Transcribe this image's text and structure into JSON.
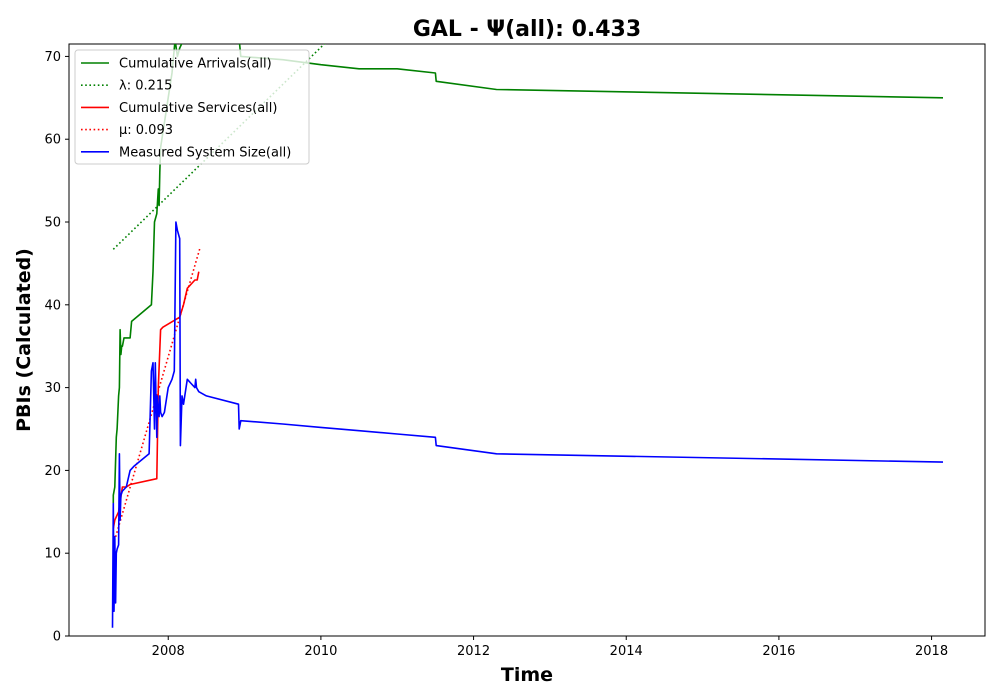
{
  "chart_data": {
    "type": "line",
    "title": "GAL -  Ψ(all): 0.433",
    "xlabel": "Time",
    "ylabel": "PBIs (Calculated)",
    "xlim": [
      2006.7,
      2018.7
    ],
    "ylim": [
      0,
      71.5
    ],
    "x_ticks": [
      2008,
      2010,
      2012,
      2014,
      2016,
      2018
    ],
    "y_ticks": [
      0,
      10,
      20,
      30,
      40,
      50,
      60,
      70
    ],
    "grid": false,
    "legend_position": "upper-left",
    "colors": {
      "green": "#008000",
      "red": "#ff0000",
      "blue": "#0000ff"
    },
    "series": [
      {
        "name": "Cumulative Arrivals(all)",
        "style": "solid",
        "color": "#008000",
        "x": [
          2007.28,
          2007.28,
          2007.3,
          2007.32,
          2007.33,
          2007.35,
          2007.36,
          2007.37,
          2007.38,
          2007.39,
          2007.4,
          2007.41,
          2007.42,
          2007.5,
          2007.52,
          2007.78,
          2007.8,
          2007.82,
          2007.85,
          2007.87,
          2007.88,
          2007.89,
          2007.9,
          2007.95,
          2008.0,
          2008.05,
          2008.09,
          2008.12,
          2008.15,
          2008.2,
          2008.25,
          2008.3,
          2008.35,
          2008.5,
          2008.6,
          2008.92,
          2008.93,
          2008.95,
          2009.5,
          2010.0,
          2010.5,
          2011.0,
          2011.5,
          2011.51,
          2012.3,
          2018.15
        ],
        "y": [
          16,
          17,
          18,
          24,
          25,
          29,
          30,
          37,
          34,
          35,
          35,
          35.5,
          36,
          36,
          38,
          40,
          44,
          50,
          51,
          54,
          52,
          56,
          59,
          62,
          65,
          68,
          72,
          70,
          71,
          72,
          72,
          72,
          72,
          72,
          72,
          72,
          72,
          70,
          69.6,
          69,
          68.5,
          68.5,
          68,
          67,
          66,
          65
        ]
      },
      {
        "name": "λ: 0.215",
        "style": "dotted",
        "color": "#008000",
        "x": [
          2007.28,
          2010.1
        ],
        "y": [
          46.7,
          72
        ]
      },
      {
        "name": "Cumulative Services(all)",
        "style": "solid",
        "color": "#ff0000",
        "x": [
          2007.28,
          2007.3,
          2007.35,
          2007.4,
          2007.42,
          2007.45,
          2007.5,
          2007.85,
          2007.87,
          2007.9,
          2007.93,
          2008.15,
          2008.2,
          2008.25,
          2008.35,
          2008.38,
          2008.4
        ],
        "y": [
          13,
          14,
          15,
          18,
          18,
          18,
          18.3,
          19,
          30,
          37,
          37.3,
          38.5,
          40,
          42,
          43,
          43,
          44
        ]
      },
      {
        "name": "μ: 0.093",
        "style": "dotted",
        "color": "#ff0000",
        "x": [
          2007.28,
          2008.42
        ],
        "y": [
          11,
          47
        ]
      },
      {
        "name": "Measured System Size(all)",
        "style": "solid",
        "color": "#0000ff",
        "x": [
          2007.27,
          2007.28,
          2007.29,
          2007.3,
          2007.31,
          2007.32,
          2007.33,
          2007.35,
          2007.36,
          2007.37,
          2007.38,
          2007.4,
          2007.45,
          2007.5,
          2007.55,
          2007.75,
          2007.78,
          2007.8,
          2007.82,
          2007.83,
          2007.85,
          2007.86,
          2007.87,
          2007.88,
          2007.89,
          2007.9,
          2007.92,
          2007.95,
          2008.0,
          2008.05,
          2008.08,
          2008.1,
          2008.12,
          2008.15,
          2008.16,
          2008.18,
          2008.2,
          2008.25,
          2008.3,
          2008.35,
          2008.36,
          2008.37,
          2008.4,
          2008.5,
          2008.92,
          2008.93,
          2008.95,
          2009.5,
          2010.0,
          2010.5,
          2011.0,
          2011.5,
          2011.51,
          2012.3,
          2018.15
        ],
        "y": [
          1,
          16,
          3,
          12,
          4,
          10,
          10.5,
          11,
          22,
          14,
          17,
          17.5,
          18,
          20,
          20.5,
          22,
          32,
          33,
          25,
          33,
          24,
          29,
          27,
          26.5,
          29,
          27,
          26.5,
          27,
          30,
          31,
          32,
          50,
          49,
          48,
          23,
          29,
          28,
          31,
          30.5,
          30,
          31,
          30,
          29.5,
          29,
          28,
          25,
          26,
          25.6,
          25.2,
          24.8,
          24.4,
          24,
          23,
          22,
          21
        ]
      }
    ]
  }
}
